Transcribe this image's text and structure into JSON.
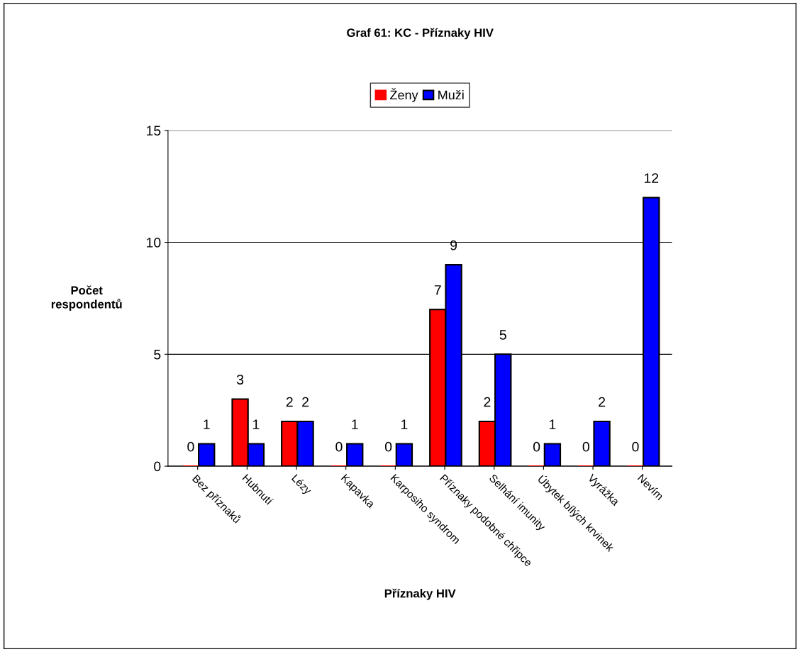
{
  "chart_data": {
    "type": "bar",
    "title": "Graf 61: KC - Příznaky HIV",
    "xlabel": "Příznaky HIV",
    "ylabel": "Počet\nrespondentů",
    "categories": [
      "Bez příznaků",
      "Hubnutí",
      "Lézy",
      "Kapavka",
      "Karposiho syndrom",
      "Příznaky podobné chřipce",
      "Selhání imunity",
      "Úbytek bílých krvinek",
      "Vyrážka",
      "Nevím"
    ],
    "series": [
      {
        "name": "Ženy",
        "color": "#ff0000",
        "values": [
          0,
          3,
          2,
          0,
          0,
          7,
          2,
          0,
          0,
          0
        ]
      },
      {
        "name": "Muži",
        "color": "#0000ff",
        "values": [
          1,
          1,
          2,
          1,
          1,
          9,
          5,
          1,
          2,
          12
        ]
      }
    ],
    "ylim": [
      0,
      15
    ],
    "yticks": [
      0,
      5,
      10,
      15
    ],
    "grid": "y",
    "legend": "top",
    "data_labels": true
  }
}
